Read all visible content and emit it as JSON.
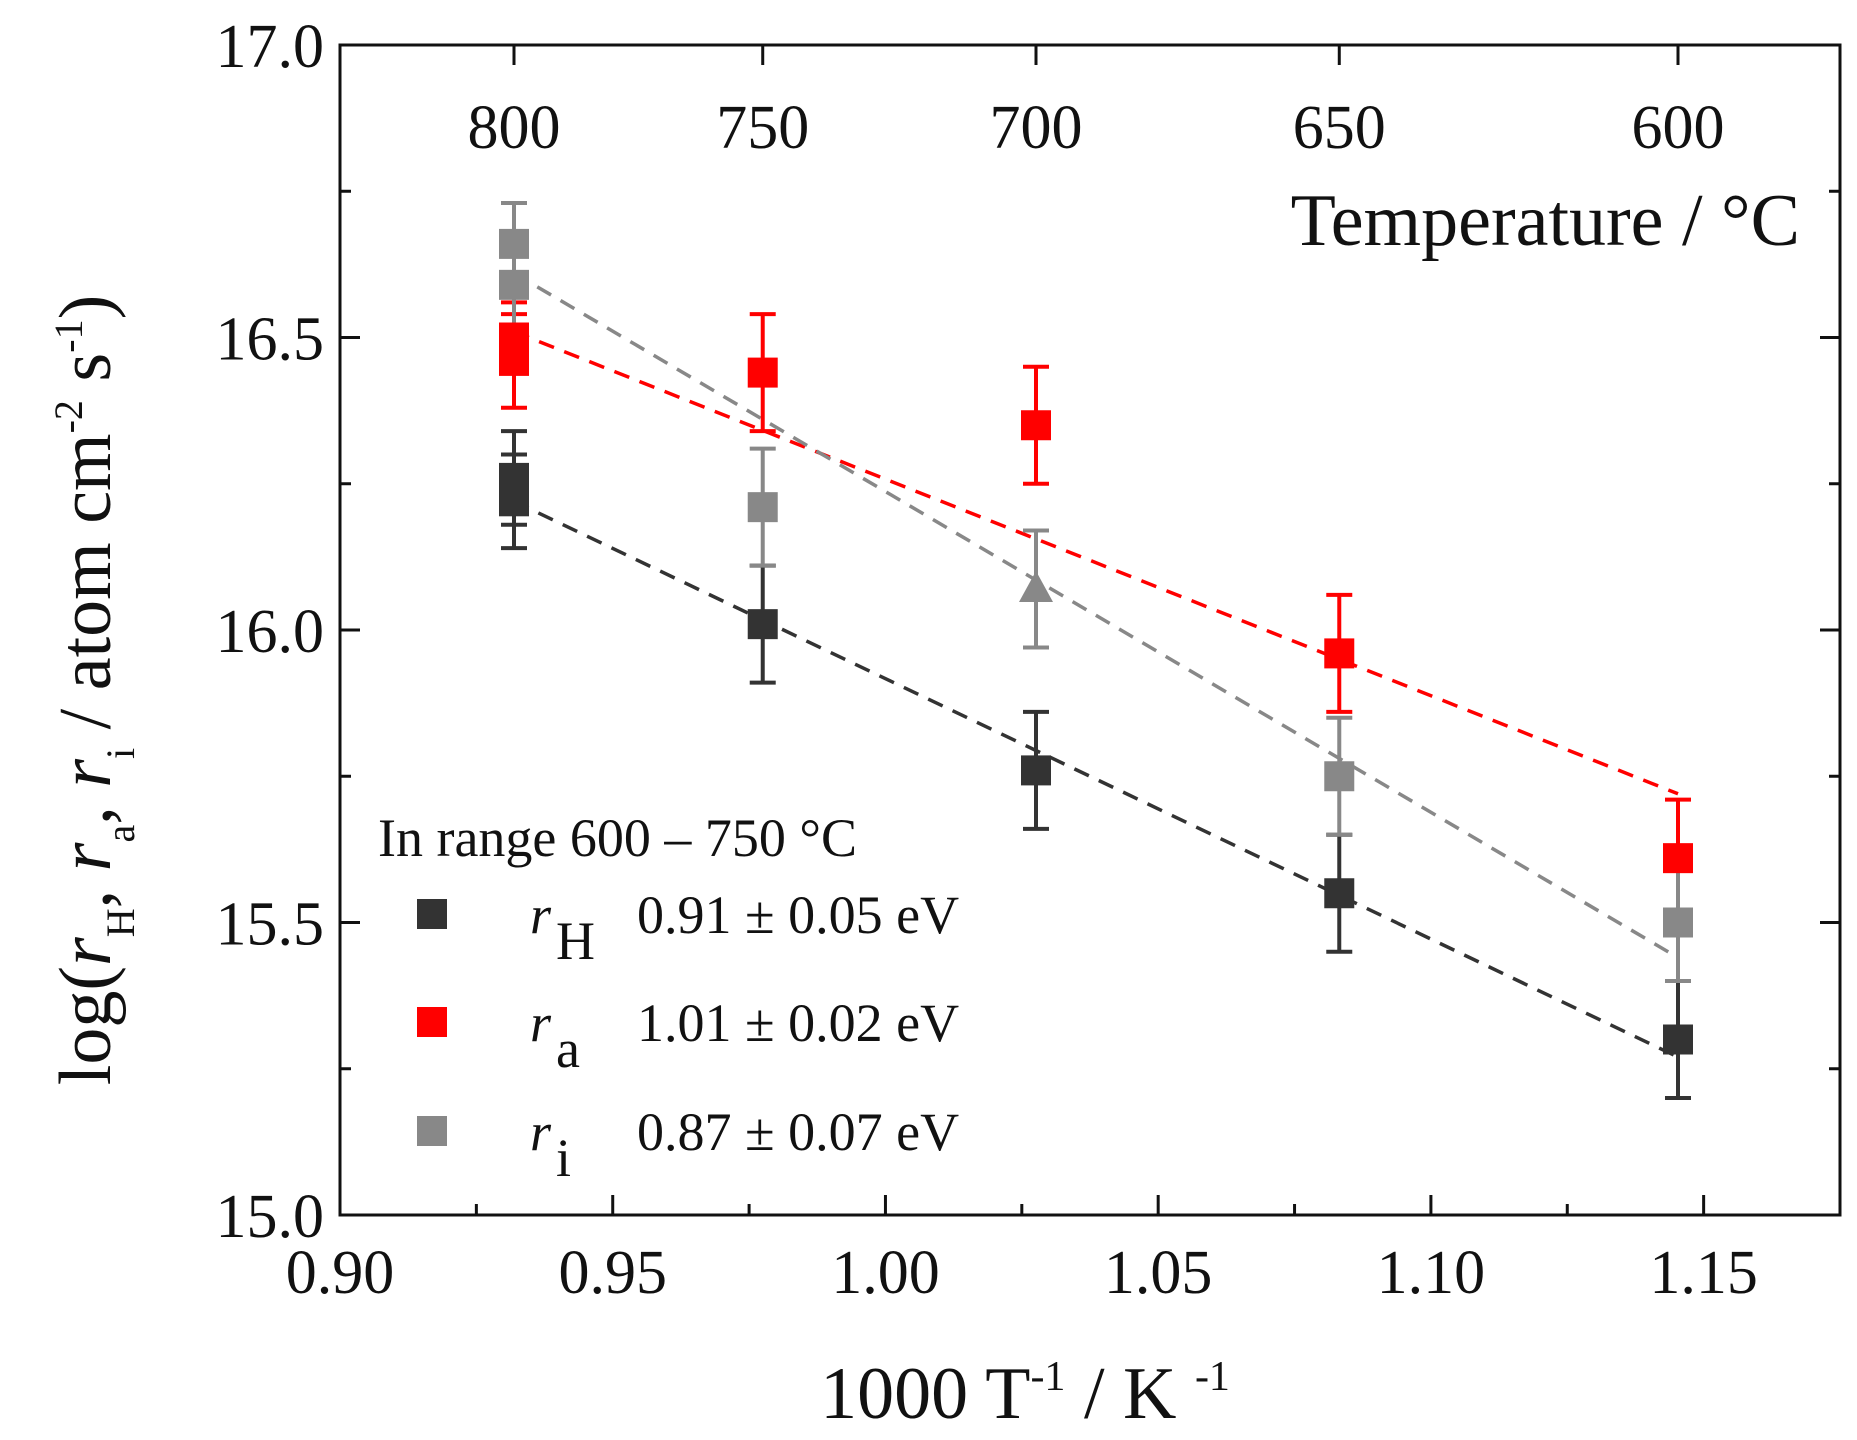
{
  "chart_data": {
    "type": "scatter",
    "xlabel_parts": {
      "main": "1000 T",
      "sup1": "-1",
      "mid": " / K ",
      "sup2": "-1"
    },
    "xlabel": "1000 T -1 / K -1",
    "ylabel_parts": {
      "pre": "log(",
      "r1": "r",
      "sub1": "H",
      "sep1": ", ",
      "r2": "r",
      "sub2": "a",
      "sep2": ", ",
      "r3": "r",
      "sub3": "i",
      "unit": " / atom cm",
      "sup1": "-2",
      "unit2": " s",
      "sup2": "-1",
      "post": ")"
    },
    "ylabel": "log(r H, r a, r i / atom cm -2 s -1)",
    "top_axis_label": "Temperature / °C",
    "xlim": [
      0.9,
      1.175
    ],
    "ylim": [
      15.0,
      17.0
    ],
    "x_ticks": [
      "0.90",
      "0.95",
      "1.00",
      "1.05",
      "1.10",
      "1.15"
    ],
    "x_tick_values": [
      0.9,
      0.95,
      1.0,
      1.05,
      1.1,
      1.15
    ],
    "y_ticks": [
      "15.0",
      "15.5",
      "16.0",
      "16.5",
      "17.0"
    ],
    "y_tick_values": [
      15.0,
      15.5,
      16.0,
      16.5,
      17.0
    ],
    "top_ticks": [
      "800",
      "750",
      "700",
      "650",
      "600"
    ],
    "top_tick_values": [
      0.9319,
      0.9775,
      1.0276,
      1.0832,
      1.1453
    ],
    "series": [
      {
        "name": "r_H",
        "color": "#333333",
        "points": [
          {
            "x": 0.9319,
            "y": 16.22,
            "err": 0.08,
            "marker": "square"
          },
          {
            "x": 0.9319,
            "y": 16.26,
            "err": 0.08,
            "marker": "square"
          },
          {
            "x": 0.9775,
            "y": 16.01,
            "err": 0.1,
            "marker": "square"
          },
          {
            "x": 1.0276,
            "y": 15.76,
            "err": 0.1,
            "marker": "square"
          },
          {
            "x": 1.0832,
            "y": 15.55,
            "err": 0.1,
            "marker": "square"
          },
          {
            "x": 1.1453,
            "y": 15.3,
            "err": 0.1,
            "marker": "square"
          }
        ],
        "fit": {
          "x": [
            0.9319,
            1.1453
          ],
          "y": [
            16.22,
            15.27
          ]
        }
      },
      {
        "name": "r_a",
        "color": "#ff0000",
        "points": [
          {
            "x": 0.9319,
            "y": 16.46,
            "err": 0.08,
            "marker": "square"
          },
          {
            "x": 0.9319,
            "y": 16.5,
            "err": 0.06,
            "marker": "square"
          },
          {
            "x": 0.9775,
            "y": 16.44,
            "err": 0.1,
            "marker": "square"
          },
          {
            "x": 1.0276,
            "y": 16.35,
            "err": 0.1,
            "marker": "square"
          },
          {
            "x": 1.0832,
            "y": 15.96,
            "err": 0.1,
            "marker": "square"
          },
          {
            "x": 1.1453,
            "y": 15.61,
            "err": 0.1,
            "marker": "square"
          }
        ],
        "fit": {
          "x": [
            0.9319,
            1.1453
          ],
          "y": [
            16.51,
            15.72
          ]
        }
      },
      {
        "name": "r_i",
        "color": "#888888",
        "points": [
          {
            "x": 0.9319,
            "y": 16.66,
            "err": 0.07,
            "marker": "square"
          },
          {
            "x": 0.9319,
            "y": 16.59,
            "err": 0.07,
            "marker": "square"
          },
          {
            "x": 0.9775,
            "y": 16.21,
            "err": 0.1,
            "marker": "square"
          },
          {
            "x": 1.0276,
            "y": 16.07,
            "err": 0.1,
            "marker": "triangle"
          },
          {
            "x": 1.0832,
            "y": 15.75,
            "err": 0.1,
            "marker": "square"
          },
          {
            "x": 1.1453,
            "y": 15.5,
            "err": 0.1,
            "marker": "square"
          }
        ],
        "fit": {
          "x": [
            0.9319,
            1.1453
          ],
          "y": [
            16.61,
            15.44
          ]
        }
      }
    ],
    "legend": {
      "title": "In range 600 – 750 °C",
      "position": "bottom-left",
      "entries": [
        {
          "symbol": "r",
          "sub": "H",
          "value": "0.91 ± 0.05 eV",
          "color": "#333333"
        },
        {
          "symbol": "r",
          "sub": "a",
          "value": "1.01 ± 0.02 eV",
          "color": "#ff0000"
        },
        {
          "symbol": "r",
          "sub": "i",
          "value": "0.87 ± 0.07 eV",
          "color": "#888888"
        }
      ]
    }
  }
}
